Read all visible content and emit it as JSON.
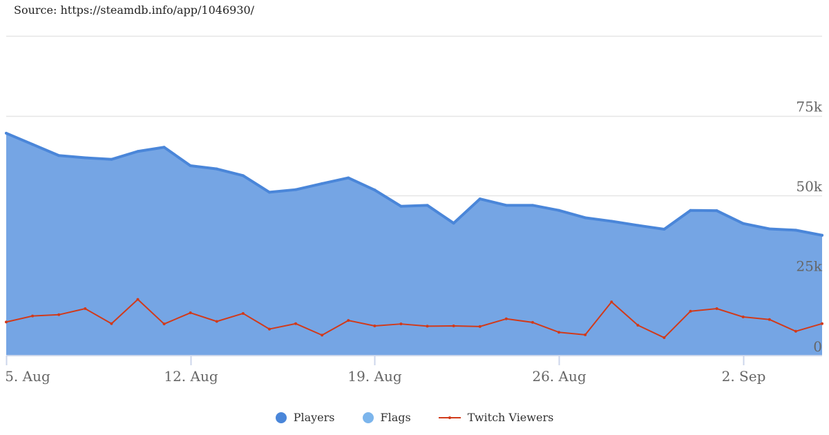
{
  "source_text": "Source: https://steamdb.info/app/1046930/",
  "colors": {
    "players_line": "#4a86d9",
    "players_fill": "#75a5e4",
    "flags": "#7cb5ec",
    "twitch": "#d13a1a",
    "grid": "#e6e6e6",
    "axis": "#ccd6eb"
  },
  "legend": [
    {
      "label": "Players",
      "color": "#4a86d9",
      "symbol": "dot"
    },
    {
      "label": "Flags",
      "color": "#7cb5ec",
      "symbol": "dot"
    },
    {
      "label": "Twitch Viewers",
      "color": "#d13a1a",
      "symbol": "line"
    }
  ],
  "chart_data": {
    "type": "area",
    "x_start": "2019-08-05",
    "x": [
      "5. Aug",
      "6. Aug",
      "7. Aug",
      "8. Aug",
      "9. Aug",
      "10. Aug",
      "11. Aug",
      "12. Aug",
      "13. Aug",
      "14. Aug",
      "15. Aug",
      "16. Aug",
      "17. Aug",
      "18. Aug",
      "19. Aug",
      "20. Aug",
      "21. Aug",
      "22. Aug",
      "23. Aug",
      "24. Aug",
      "25. Aug",
      "26. Aug",
      "27. Aug",
      "28. Aug",
      "29. Aug",
      "30. Aug",
      "31. Aug",
      "1. Sep",
      "2. Sep",
      "3. Sep",
      "4. Sep",
      "5. Sep"
    ],
    "x_ticks": [
      "5. Aug",
      "12. Aug",
      "19. Aug",
      "26. Aug",
      "2. Sep"
    ],
    "x_tick_index": [
      0,
      7,
      14,
      21,
      28
    ],
    "y_ticks": [
      0,
      25000,
      50000,
      75000
    ],
    "y_tick_labels": [
      "0",
      "25k",
      "50k",
      "75k"
    ],
    "ylim": [
      0,
      100000
    ],
    "grid": true,
    "legend_position": "bottom",
    "series": [
      {
        "name": "Players",
        "type": "area",
        "values": [
          69500,
          66000,
          62500,
          61800,
          61300,
          63800,
          65100,
          59300,
          58300,
          56200,
          51000,
          51800,
          53700,
          55500,
          51700,
          46600,
          46900,
          41300,
          48900,
          46900,
          46900,
          45300,
          43000,
          41900,
          40600,
          39400,
          45300,
          45200,
          41200,
          39500,
          39100,
          37500
        ]
      },
      {
        "name": "Twitch Viewers",
        "type": "line",
        "values": [
          10300,
          12200,
          12600,
          14500,
          9800,
          17400,
          9700,
          13200,
          10500,
          13000,
          8100,
          9800,
          6200,
          10800,
          9100,
          9700,
          9000,
          9100,
          8900,
          11300,
          10200,
          7100,
          6300,
          16600,
          9300,
          5400,
          13700,
          14500,
          11900,
          11100,
          7400,
          9800
        ]
      }
    ]
  }
}
